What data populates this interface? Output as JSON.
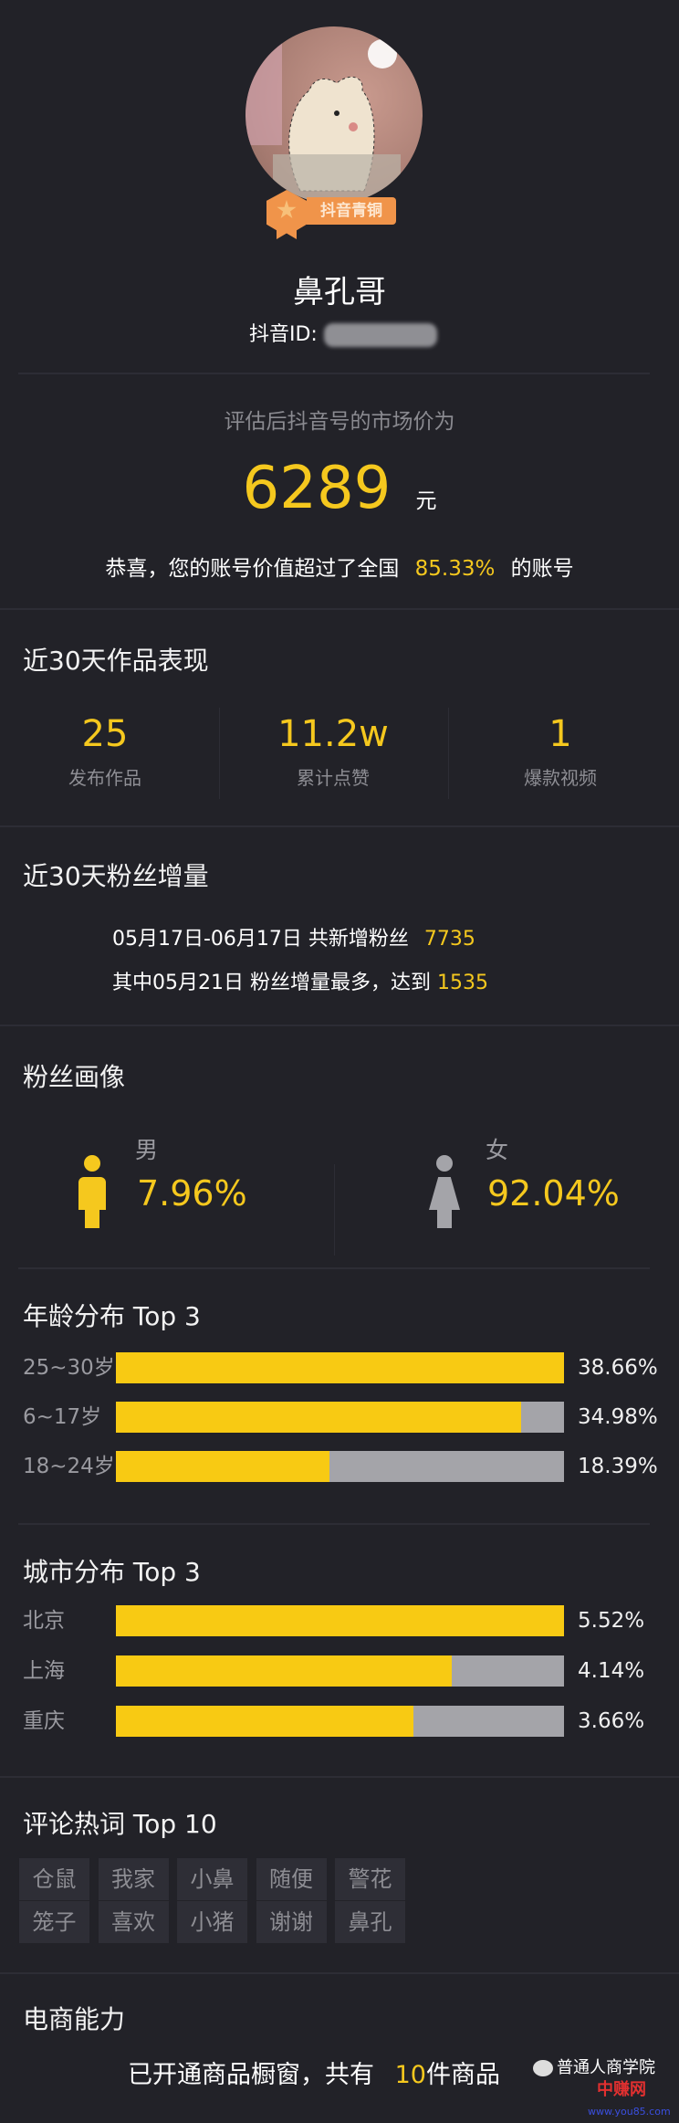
{
  "colors": {
    "background": "#222228",
    "accent": "#f5c81e",
    "bar_fill": "#f8ca13",
    "bar_track": "#a4a4a9",
    "badge": "#f0944a"
  },
  "profile": {
    "badge_label": "抖音青铜",
    "name": "鼻孔哥",
    "id_label": "抖音ID:",
    "avatar_icon": "hamster-avatar"
  },
  "valuation": {
    "caption": "评估后抖音号的市场价为",
    "amount": "6289",
    "unit": "元",
    "congrats_prefix": "恭喜，您的账号价值超过了全国",
    "percent": "85.33%",
    "congrats_suffix": "的账号"
  },
  "works": {
    "title": "近30天作品表现",
    "stats": [
      {
        "value": "25",
        "label": "发布作品"
      },
      {
        "value": "11.2w",
        "label": "累计点赞"
      },
      {
        "value": "1",
        "label": "爆款视频"
      }
    ]
  },
  "fans_growth": {
    "title": "近30天粉丝增量",
    "line1_prefix": "05月17日-06月17日 共新增粉丝",
    "line1_value": "7735",
    "line2_prefix": "其中05月21日 粉丝增量最多，达到",
    "line2_value": "1535"
  },
  "portrait": {
    "title": "粉丝画像",
    "male": {
      "label": "男",
      "percent": "7.96%",
      "icon": "male-icon"
    },
    "female": {
      "label": "女",
      "percent": "92.04%",
      "icon": "female-icon"
    }
  },
  "age": {
    "title": "年龄分布 Top 3",
    "items": [
      {
        "label": "25~30岁",
        "percent": "38.66%",
        "value": 38.66
      },
      {
        "label": "6~17岁",
        "percent": "34.98%",
        "value": 34.98
      },
      {
        "label": "18~24岁",
        "percent": "18.39%",
        "value": 18.39
      }
    ]
  },
  "city": {
    "title": "城市分布 Top 3",
    "items": [
      {
        "label": "北京",
        "percent": "5.52%",
        "value": 5.52
      },
      {
        "label": "上海",
        "percent": "4.14%",
        "value": 4.14
      },
      {
        "label": "重庆",
        "percent": "3.66%",
        "value": 3.66
      }
    ]
  },
  "comments": {
    "title": "评论热词 Top 10",
    "tags": [
      "仓鼠",
      "我家",
      "小鼻",
      "随便",
      "警花",
      "笼子",
      "喜欢",
      "小猪",
      "谢谢",
      "鼻孔"
    ]
  },
  "ecommerce": {
    "title": "电商能力",
    "prefix": "已开通商品橱窗，共有",
    "count": "10",
    "suffix": "件商品"
  },
  "watermark": {
    "text": "普通人商学院",
    "logo_text": "中赚网",
    "url_text": "www.you85.com"
  }
}
